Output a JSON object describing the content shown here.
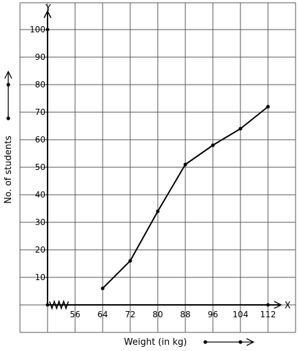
{
  "chart_data": {
    "type": "line",
    "xlabel": "Weight (in kg)",
    "ylabel": "No. of students",
    "x_axis_letter": "X",
    "y_axis_letter": "Y",
    "x_ticks": [
      "56",
      "64",
      "72",
      "80",
      "88",
      "96",
      "104",
      "112"
    ],
    "y_ticks": [
      "10",
      "20",
      "30",
      "40",
      "50",
      "60",
      "70",
      "80",
      "90",
      "100"
    ],
    "xlim": [
      48,
      120
    ],
    "ylim": [
      0,
      110
    ],
    "grid": true,
    "axis_break": "x-axis near origin (zig-zag)",
    "series": [
      {
        "x": [
          64,
          72,
          80,
          88,
          96,
          104,
          112
        ],
        "y": [
          6,
          16,
          34,
          51,
          58,
          64,
          72
        ]
      }
    ]
  }
}
